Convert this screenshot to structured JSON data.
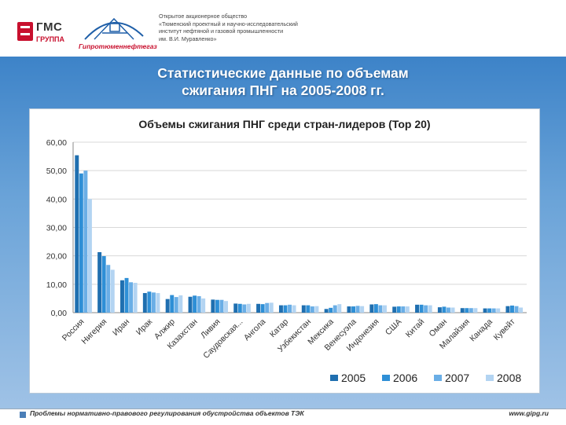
{
  "header": {
    "gms_name": "ГМС",
    "gms_group": "ГРУППА",
    "gip_name": "Гипротюменнефтегаз",
    "institute_lines": [
      "Открытое акционерное общество",
      "«Тюменский проектный и научно-исследовательский",
      "институт нефтяной и газовой промышленности",
      "им. В.И. Муравленко»"
    ]
  },
  "slide": {
    "title_line1": "Статистические данные по объемам",
    "title_line2": "сжигания ПНГ на 2005-2008 гг."
  },
  "footer": {
    "text": "Проблемы нормативно-правового регулирования обустройства объектов ТЭК",
    "url": "www.gipg.ru"
  },
  "colors": {
    "s2005": "#1f6fb0",
    "s2006": "#2e8fd6",
    "s2007": "#6aaee6",
    "s2008": "#b3d4f2"
  },
  "chart_data": {
    "type": "bar",
    "title": "Объемы сжигания ПНГ среди стран-лидеров (Top 20)",
    "ylim": [
      0,
      60
    ],
    "yticks": [
      "0,00",
      "10,00",
      "20,00",
      "30,00",
      "40,00",
      "50,00",
      "60,00"
    ],
    "ytick_values": [
      0,
      10,
      20,
      30,
      40,
      50,
      60
    ],
    "legend_position": "bottom-right",
    "categories": [
      "Россия",
      "Нигерия",
      "Иран",
      "Ирак",
      "Алжир",
      "Казахстан",
      "Ливия",
      "Саудовская...",
      "Ангола",
      "Катар",
      "Узбекистан",
      "Мексика",
      "Венесуэла",
      "Индонезия",
      "США",
      "Китай",
      "Оман",
      "Малайзия",
      "Канада",
      "Кувейт"
    ],
    "series": [
      {
        "name": "2005",
        "values": [
          55.4,
          21.3,
          11.4,
          6.9,
          4.8,
          5.6,
          4.6,
          3.2,
          3.1,
          2.6,
          2.6,
          1.3,
          2.2,
          2.9,
          2.1,
          2.8,
          1.9,
          1.6,
          1.5,
          2.3
        ]
      },
      {
        "name": "2006",
        "values": [
          49.0,
          19.9,
          12.2,
          7.4,
          6.2,
          6.0,
          4.5,
          3.1,
          3.0,
          2.6,
          2.6,
          1.7,
          2.2,
          3.0,
          2.2,
          2.8,
          2.1,
          1.6,
          1.5,
          2.5
        ]
      },
      {
        "name": "2007",
        "values": [
          50.0,
          16.8,
          10.7,
          7.1,
          5.5,
          5.8,
          4.5,
          2.9,
          3.4,
          2.8,
          2.2,
          2.6,
          2.4,
          2.6,
          2.2,
          2.6,
          1.8,
          1.6,
          1.5,
          2.3
        ]
      },
      {
        "name": "2008",
        "values": [
          40.0,
          15.1,
          10.5,
          6.9,
          6.1,
          5.0,
          4.1,
          3.1,
          3.5,
          2.6,
          2.3,
          3.0,
          2.3,
          2.6,
          2.2,
          2.6,
          1.8,
          1.6,
          1.5,
          1.8
        ]
      }
    ]
  }
}
